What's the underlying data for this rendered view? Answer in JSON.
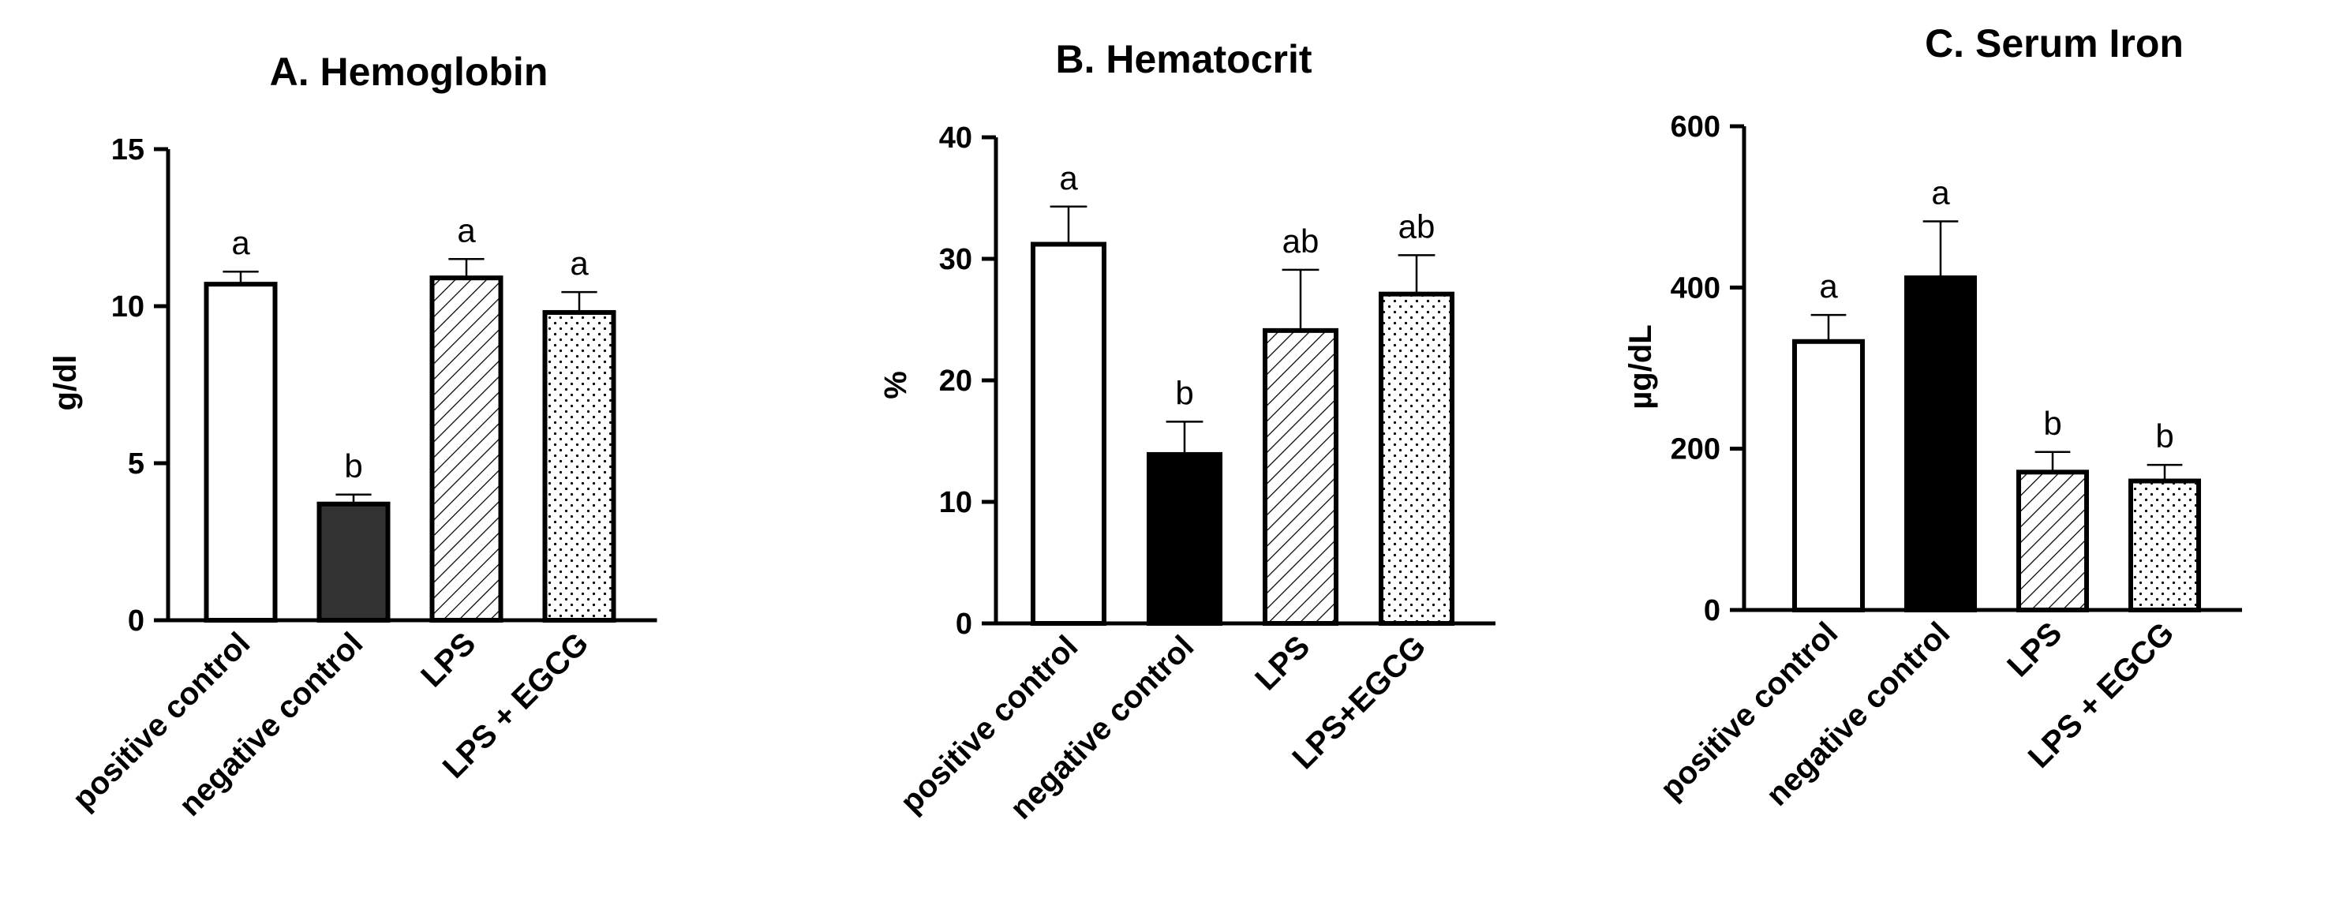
{
  "colors": {
    "ink": "#000000",
    "dark_fill": "#333333",
    "black_fill": "#000000",
    "white_fill": "#ffffff"
  },
  "chart_data": [
    {
      "type": "bar",
      "title": "A.  Hemoglobin",
      "ylabel": "g/dl",
      "ylim": [
        0,
        15
      ],
      "yticks": [
        0,
        5,
        10,
        15
      ],
      "categories": [
        "positive control",
        "negative control",
        "LPS",
        "LPS + EGCG"
      ],
      "values": [
        10.7,
        3.7,
        10.9,
        9.8
      ],
      "errors": [
        0.4,
        0.3,
        0.6,
        0.65
      ],
      "letters": [
        "a",
        "b",
        "a",
        "a"
      ],
      "fills": [
        "white",
        "dark",
        "diagonal",
        "dots"
      ]
    },
    {
      "type": "bar",
      "title": "B.  Hematocrit",
      "ylabel": "%",
      "ylim": [
        0,
        40
      ],
      "yticks": [
        0,
        10,
        20,
        30,
        40
      ],
      "categories": [
        "positive control",
        "negative control",
        "LPS",
        "LPS+EGCG"
      ],
      "values": [
        31.2,
        13.9,
        24.1,
        27.1
      ],
      "errors": [
        3.1,
        2.7,
        5.0,
        3.2
      ],
      "letters": [
        "a",
        "b",
        "ab",
        "ab"
      ],
      "fills": [
        "white",
        "black",
        "diagonal",
        "dots"
      ]
    },
    {
      "type": "bar",
      "title": "C.  Serum Iron",
      "ylabel": "µg/dL",
      "ylim": [
        0,
        600
      ],
      "yticks": [
        0,
        200,
        400,
        600
      ],
      "categories": [
        "positive control",
        "negative control",
        "LPS",
        "LPS + EGCG"
      ],
      "values": [
        333,
        412,
        171,
        160
      ],
      "errors": [
        33,
        70,
        25,
        20
      ],
      "letters": [
        "a",
        "a",
        "b",
        "b"
      ],
      "fills": [
        "white",
        "black",
        "diagonal",
        "dots"
      ]
    }
  ]
}
